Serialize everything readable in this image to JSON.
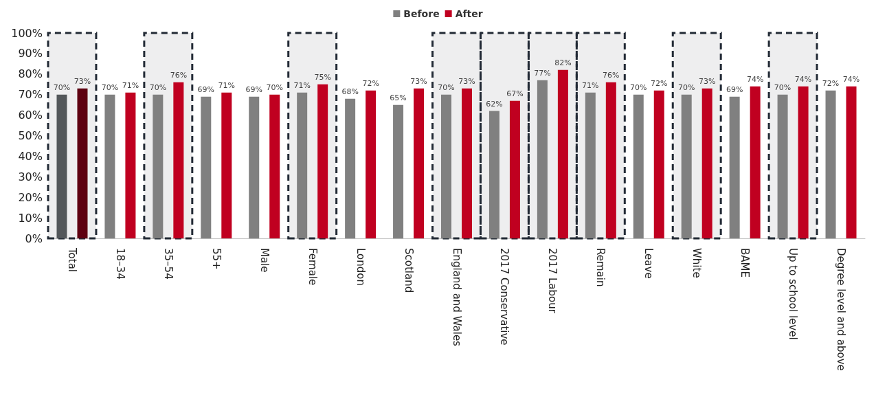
{
  "chart_data": {
    "type": "bar",
    "categories": [
      "Total",
      "18–34",
      "35–54",
      "55+",
      "Male",
      "Female",
      "London",
      "Scotland",
      "England and Wales",
      "2017 Conservative",
      "2017 Labour",
      "Remain",
      "Leave",
      "White",
      "BAME",
      "Up to school level",
      "Degree level and above"
    ],
    "series": [
      {
        "name": "Before",
        "color": "#808080",
        "colors": [
          "#53575a",
          "#808080",
          "#808080",
          "#808080",
          "#808080",
          "#808080",
          "#808080",
          "#808080",
          "#808080",
          "#808080",
          "#808080",
          "#808080",
          "#808080",
          "#808080",
          "#808080",
          "#808080",
          "#808080"
        ],
        "values": [
          70,
          70,
          70,
          69,
          69,
          71,
          68,
          65,
          70,
          62,
          77,
          71,
          70,
          70,
          69,
          70,
          72
        ],
        "value_labels": [
          "70%",
          "70%",
          "70%",
          "69%",
          "69%",
          "71%",
          "68%",
          "65%",
          "70%",
          "62%",
          "77%",
          "71%",
          "70%",
          "70%",
          "69%",
          "70%",
          "72%"
        ]
      },
      {
        "name": "After",
        "color": "#c00020",
        "colors": [
          "#5e0010",
          "#c00020",
          "#c00020",
          "#c00020",
          "#c00020",
          "#c00020",
          "#c00020",
          "#c00020",
          "#c00020",
          "#c00020",
          "#c00020",
          "#c00020",
          "#c00020",
          "#c00020",
          "#c00020",
          "#c00020",
          "#c00020"
        ],
        "values": [
          73,
          71,
          76,
          71,
          70,
          75,
          72,
          73,
          73,
          67,
          82,
          76,
          72,
          73,
          74,
          74,
          74
        ],
        "value_labels": [
          "73%",
          "71%",
          "76%",
          "71%",
          "70%",
          "75%",
          "72%",
          "73%",
          "73%",
          "67%",
          "82%",
          "76%",
          "72%",
          "73%",
          "74%",
          "74%",
          "74%"
        ]
      }
    ],
    "ylim": [
      0,
      100
    ],
    "yticks": [
      {
        "value": 0,
        "label": "0%"
      },
      {
        "value": 10,
        "label": "10%"
      },
      {
        "value": 20,
        "label": "20%"
      },
      {
        "value": 30,
        "label": "30%"
      },
      {
        "value": 40,
        "label": "40%"
      },
      {
        "value": 50,
        "label": "50%"
      },
      {
        "value": 60,
        "label": "60%"
      },
      {
        "value": 70,
        "label": "70%"
      },
      {
        "value": 80,
        "label": "80%"
      },
      {
        "value": 90,
        "label": "90%"
      },
      {
        "value": 100,
        "label": "100%"
      }
    ],
    "bands": [
      {
        "axis": "x",
        "from": "Total",
        "to": "Total",
        "color": "#222a35"
      },
      {
        "axis": "x",
        "from": "35–54",
        "to": "35–54",
        "color": "#222a35"
      },
      {
        "axis": "x",
        "from": "Female",
        "to": "Female",
        "color": "#222a35"
      },
      {
        "axis": "x",
        "from": "England and Wales",
        "to": "England and Wales",
        "color": "#222a35"
      },
      {
        "axis": "x",
        "from": "2017 Conservative",
        "to": "2017 Conservative",
        "color": "#222a35"
      },
      {
        "axis": "x",
        "from": "2017 Labour",
        "to": "2017 Labour",
        "color": "#222a35"
      },
      {
        "axis": "x",
        "from": "Remain",
        "to": "Remain",
        "color": "#222a35"
      },
      {
        "axis": "x",
        "from": "White",
        "to": "White",
        "color": "#222a35"
      },
      {
        "axis": "x",
        "from": "Up to school level",
        "to": "Up to school level",
        "color": "#222a35"
      }
    ],
    "grid": false,
    "legend": "top"
  }
}
